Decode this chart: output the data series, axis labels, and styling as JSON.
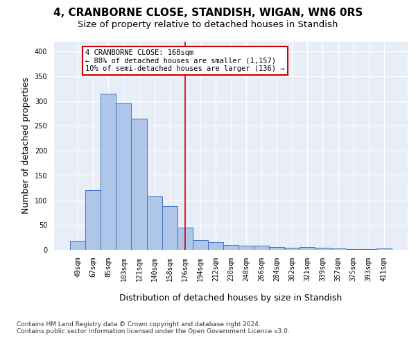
{
  "title1": "4, CRANBORNE CLOSE, STANDISH, WIGAN, WN6 0RS",
  "title2": "Size of property relative to detached houses in Standish",
  "xlabel": "Distribution of detached houses by size in Standish",
  "ylabel": "Number of detached properties",
  "categories": [
    "49sqm",
    "67sqm",
    "85sqm",
    "103sqm",
    "121sqm",
    "140sqm",
    "158sqm",
    "176sqm",
    "194sqm",
    "212sqm",
    "230sqm",
    "248sqm",
    "266sqm",
    "284sqm",
    "302sqm",
    "321sqm",
    "339sqm",
    "357sqm",
    "375sqm",
    "393sqm",
    "411sqm"
  ],
  "values": [
    18,
    120,
    315,
    295,
    265,
    108,
    88,
    45,
    20,
    16,
    10,
    9,
    8,
    6,
    4,
    5,
    4,
    3,
    2,
    1,
    3
  ],
  "bar_color": "#aec6e8",
  "bar_edge_color": "#4472c4",
  "property_line_index": 7,
  "property_line_color": "#cc0000",
  "annotation_text": "4 CRANBORNE CLOSE: 168sqm\n← 88% of detached houses are smaller (1,157)\n10% of semi-detached houses are larger (136) →",
  "annotation_box_color": "#ffffff",
  "annotation_box_edge_color": "#cc0000",
  "ylim": [
    0,
    420
  ],
  "yticks": [
    0,
    50,
    100,
    150,
    200,
    250,
    300,
    350,
    400
  ],
  "background_color": "#e8eef8",
  "footer_text": "Contains HM Land Registry data © Crown copyright and database right 2024.\nContains public sector information licensed under the Open Government Licence v3.0.",
  "title1_fontsize": 11,
  "title2_fontsize": 9.5,
  "xlabel_fontsize": 9,
  "ylabel_fontsize": 9,
  "annotation_fontsize": 7.5,
  "tick_fontsize": 7,
  "footer_fontsize": 6.5
}
